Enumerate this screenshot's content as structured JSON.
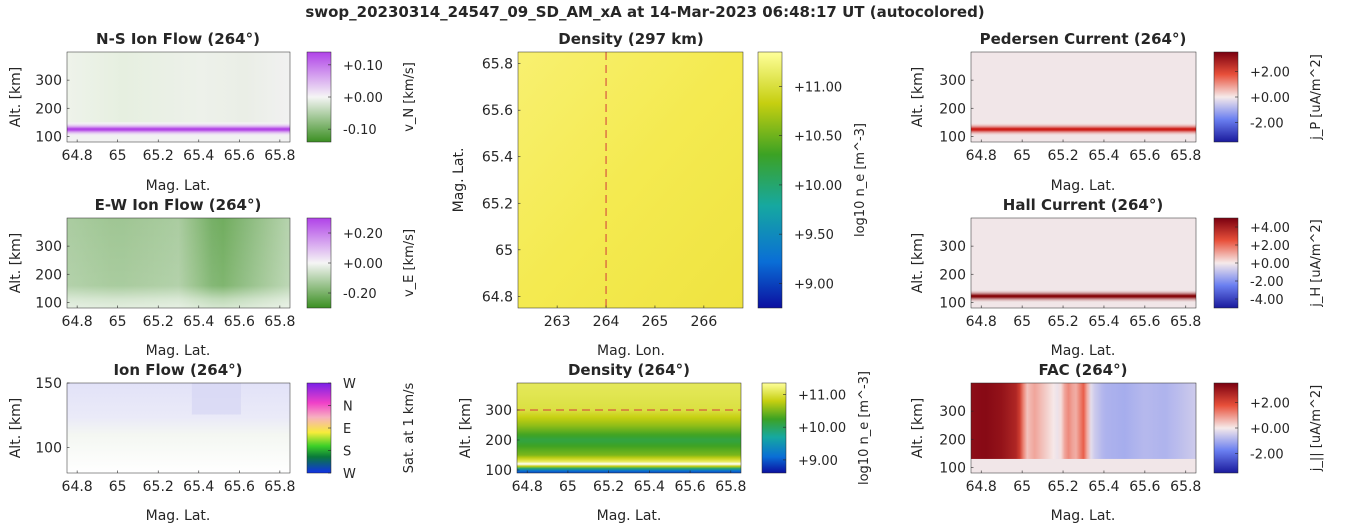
{
  "figure": {
    "title": "swop_20230314_24547_09_SD_AM_xA at 14-Mar-2023 06:48:17 UT (autocolored)"
  },
  "chart_data": [
    {
      "id": "ns-ion-flow",
      "type": "heatmap",
      "title": "N-S Ion Flow (264°)",
      "xlabel": "Mag. Lat.",
      "ylabel": "Alt. [km]",
      "xlim": [
        64.75,
        65.85
      ],
      "ylim": [
        80,
        400
      ],
      "xticks": [
        "64.8",
        "65",
        "65.2",
        "65.4",
        "65.6",
        "65.8"
      ],
      "yticks": [
        "100",
        "200",
        "300"
      ],
      "colorbar": {
        "label": "v_N [km/s]",
        "ticks": [
          "+0.10",
          "+0.00",
          "-0.10"
        ],
        "range": [
          -0.14,
          0.14
        ],
        "colormap": "green-white-purple"
      },
      "description_band": {
        "alt_center_km": 125,
        "peak_value": 0.09
      }
    },
    {
      "id": "ew-ion-flow",
      "type": "heatmap",
      "title": "E-W Ion Flow (264°)",
      "xlabel": "Mag. Lat.",
      "ylabel": "Alt. [km]",
      "xlim": [
        64.75,
        65.85
      ],
      "ylim": [
        80,
        400
      ],
      "xticks": [
        "64.8",
        "65",
        "65.2",
        "65.4",
        "65.6",
        "65.8"
      ],
      "yticks": [
        "100",
        "200",
        "300"
      ],
      "colorbar": {
        "label": "v_E [km/s]",
        "ticks": [
          "+0.20",
          "+0.00",
          "-0.20"
        ],
        "range": [
          -0.3,
          0.3
        ],
        "colormap": "green-white-purple"
      },
      "lat_profile": {
        "lat": [
          64.75,
          65.0,
          65.3,
          65.5,
          65.85
        ],
        "value": [
          -0.12,
          -0.14,
          -0.12,
          -0.22,
          -0.1
        ]
      }
    },
    {
      "id": "ion-flow-direction",
      "type": "heatmap",
      "title": "Ion Flow (264°)",
      "xlabel": "Mag. Lat.",
      "ylabel": "Alt. [km]",
      "xlim": [
        64.75,
        65.85
      ],
      "ylim": [
        80,
        150
      ],
      "xticks": [
        "64.8",
        "65",
        "65.2",
        "65.4",
        "65.6",
        "65.8"
      ],
      "yticks": [
        "100",
        "150"
      ],
      "colorbar": {
        "label": "Sat. at 1 km/s",
        "ticks": [
          "W",
          "N",
          "E",
          "S",
          "W"
        ],
        "colormap": "hsv-direction"
      }
    },
    {
      "id": "density-297",
      "type": "heatmap",
      "title": "Density (297 km)",
      "xlabel": "Mag. Lon.",
      "ylabel": "Mag. Lat.",
      "xlim": [
        262.2,
        266.8
      ],
      "ylim": [
        64.75,
        65.85
      ],
      "xticks": [
        "263",
        "264",
        "265",
        "266"
      ],
      "yticks": [
        "64.8",
        "65",
        "65.2",
        "65.4",
        "65.6",
        "65.8"
      ],
      "marker_line": {
        "orientation": "vertical",
        "value": 264
      },
      "colorbar": {
        "label": "log10 n_e [m^-3]",
        "ticks": [
          "+11.00",
          "+10.50",
          "+10.00",
          "+9.50",
          "+9.00"
        ],
        "range": [
          8.75,
          11.35
        ],
        "colormap": "parula-like"
      },
      "value_range": [
        11.18,
        11.24
      ]
    },
    {
      "id": "density-264",
      "type": "heatmap",
      "title": "Density (264°)",
      "xlabel": "Mag. Lat.",
      "ylabel": "Alt. [km]",
      "xlim": [
        64.75,
        65.85
      ],
      "ylim": [
        90,
        390
      ],
      "xticks": [
        "64.8",
        "65",
        "65.2",
        "65.4",
        "65.6",
        "65.8"
      ],
      "yticks": [
        "100",
        "200",
        "300"
      ],
      "marker_line": {
        "orientation": "horizontal",
        "value": 300
      },
      "colorbar": {
        "label": "log10 n_e [m^-3]",
        "ticks": [
          "+11.00",
          "+10.00",
          "+9.00"
        ],
        "range": [
          8.6,
          11.35
        ],
        "colormap": "parula-like"
      },
      "alt_profile": {
        "alt": [
          90,
          100,
          110,
          120,
          150,
          200,
          250,
          300,
          390
        ],
        "value": [
          8.9,
          9.2,
          10.6,
          11.35,
          10.5,
          10.1,
          10.6,
          11.0,
          11.1
        ]
      }
    },
    {
      "id": "pedersen-current",
      "type": "heatmap",
      "title": "Pedersen Current (264°)",
      "xlabel": "Mag. Lat.",
      "ylabel": "Alt. [km]",
      "xlim": [
        64.75,
        65.85
      ],
      "ylim": [
        80,
        400
      ],
      "xticks": [
        "64.8",
        "65",
        "65.2",
        "65.4",
        "65.6",
        "65.8"
      ],
      "yticks": [
        "100",
        "200",
        "300"
      ],
      "colorbar": {
        "label": "j_P [uA/m^2]",
        "ticks": [
          "+2.00",
          "+0.00",
          "-2.00"
        ],
        "range": [
          -3.5,
          3.5
        ],
        "colormap": "blue-white-red"
      },
      "description_band": {
        "alt_center_km": 125,
        "peak_value": 3.0
      }
    },
    {
      "id": "hall-current",
      "type": "heatmap",
      "title": "Hall Current (264°)",
      "xlabel": "Mag. Lat.",
      "ylabel": "Alt. [km]",
      "xlim": [
        64.75,
        65.85
      ],
      "ylim": [
        80,
        400
      ],
      "xticks": [
        "64.8",
        "65",
        "65.2",
        "65.4",
        "65.6",
        "65.8"
      ],
      "yticks": [
        "100",
        "200",
        "300"
      ],
      "colorbar": {
        "label": "j_H [uA/m^2]",
        "ticks": [
          "+4.00",
          "+2.00",
          "+0.00",
          "-2.00",
          "-4.00"
        ],
        "range": [
          -5,
          5
        ],
        "colormap": "blue-white-red"
      },
      "description_band": {
        "alt_center_km": 122,
        "peak_value": 4.8
      }
    },
    {
      "id": "fac",
      "type": "heatmap",
      "title": "FAC (264°)",
      "xlabel": "Mag. Lat.",
      "ylabel": "Alt. [km]",
      "xlim": [
        64.75,
        65.85
      ],
      "ylim": [
        80,
        400
      ],
      "xticks": [
        "64.8",
        "65",
        "65.2",
        "65.4",
        "65.6",
        "65.8"
      ],
      "yticks": [
        "100",
        "200",
        "300"
      ],
      "colorbar": {
        "label": "j_|| [uA/m^2]",
        "ticks": [
          "+2.00",
          "+0.00",
          "-2.00"
        ],
        "range": [
          -3.5,
          3.5
        ],
        "colormap": "blue-white-red"
      },
      "lat_profile": {
        "lat": [
          64.75,
          64.82,
          64.9,
          64.98,
          65.02,
          65.06,
          65.12,
          65.18,
          65.22,
          65.26,
          65.3,
          65.34,
          65.4,
          65.5,
          65.6,
          65.7,
          65.85
        ],
        "value": [
          3.2,
          3.3,
          3.1,
          2.6,
          0.4,
          0.8,
          0.3,
          -0.2,
          1.2,
          0.6,
          1.6,
          -0.4,
          -0.9,
          -1.0,
          -0.8,
          -0.9,
          -0.5
        ]
      }
    }
  ]
}
